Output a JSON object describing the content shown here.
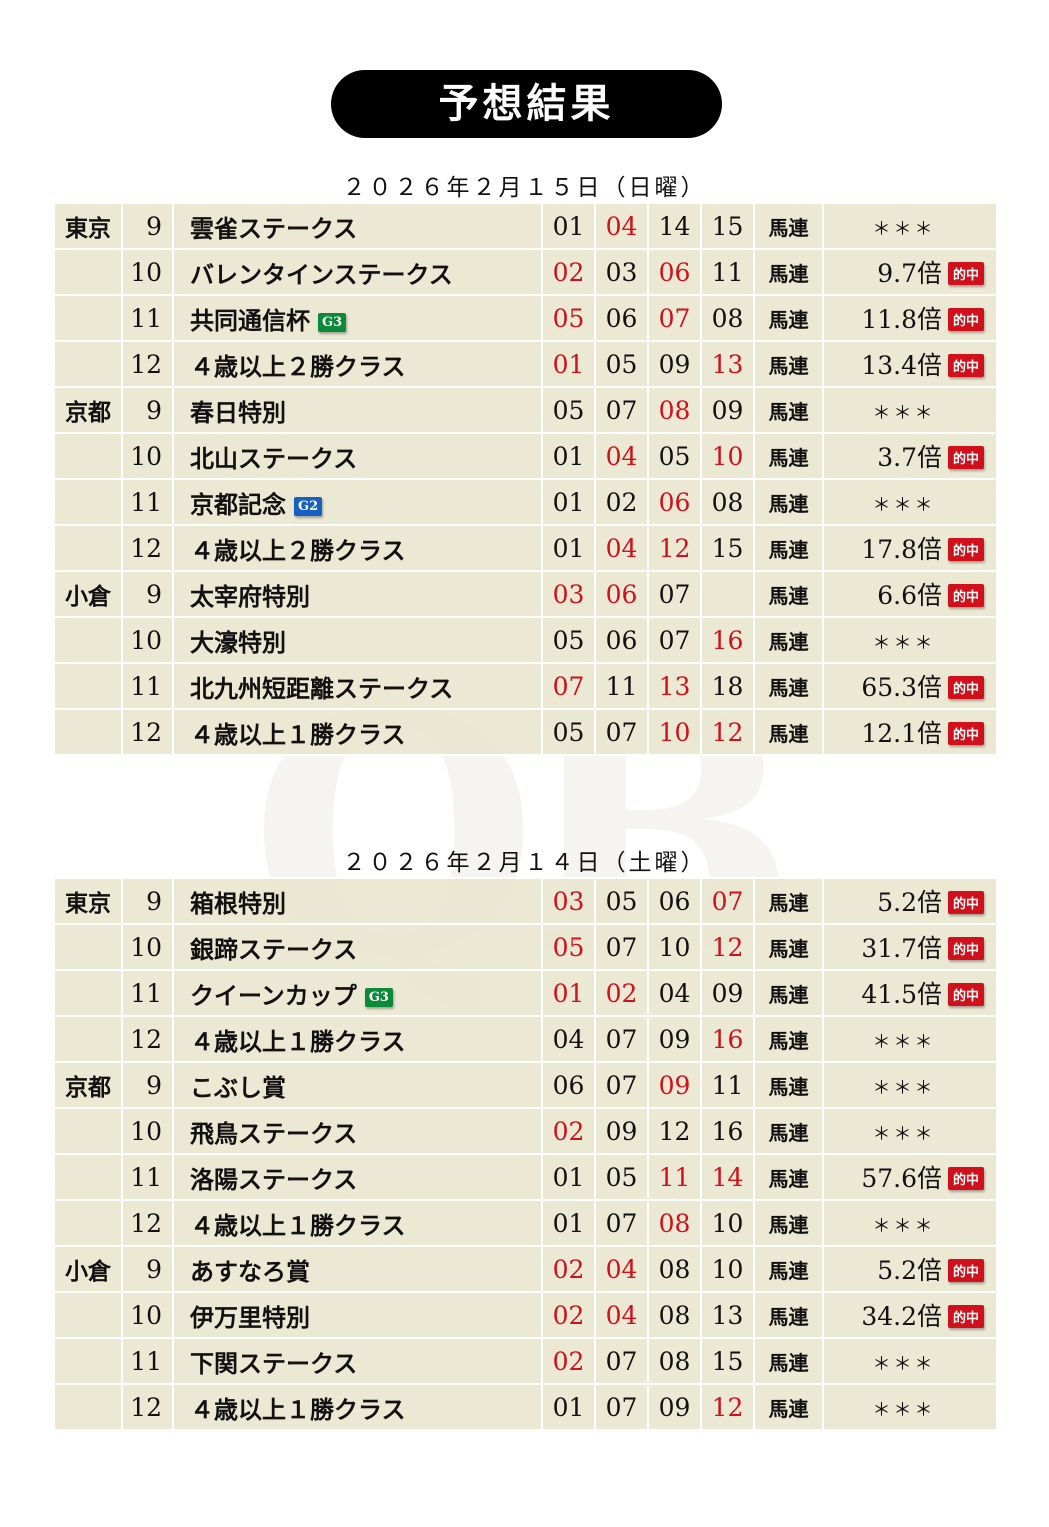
{
  "title": "予想結果",
  "watermark": "QB",
  "colors": {
    "hit": "#d0101b",
    "G3": "#0b8a3a",
    "G2": "#1560c0",
    "cell": "#ece9d5"
  },
  "hit_label": "的中",
  "days": [
    {
      "date": "２０２６年２月１５日（日曜）",
      "rows": [
        {
          "venue": "東京",
          "no": "9",
          "name": "雲雀ステークス",
          "nums": [
            "01",
            "04",
            "14",
            "15"
          ],
          "hits": [
            1
          ],
          "type": "馬連",
          "result": "＊＊＊"
        },
        {
          "venue": "",
          "no": "10",
          "name": "バレンタインステークス",
          "nums": [
            "02",
            "03",
            "06",
            "11"
          ],
          "hits": [
            0,
            2
          ],
          "type": "馬連",
          "result": "9.7倍"
        },
        {
          "venue": "",
          "no": "11",
          "name": "共同通信杯",
          "grade": "G3",
          "nums": [
            "05",
            "06",
            "07",
            "08"
          ],
          "hits": [
            0,
            2
          ],
          "type": "馬連",
          "result": "11.8倍"
        },
        {
          "venue": "",
          "no": "12",
          "name": "４歳以上２勝クラス",
          "nums": [
            "01",
            "05",
            "09",
            "13"
          ],
          "hits": [
            0,
            3
          ],
          "type": "馬連",
          "result": "13.4倍"
        },
        {
          "venue": "京都",
          "no": "9",
          "name": "春日特別",
          "nums": [
            "05",
            "07",
            "08",
            "09"
          ],
          "hits": [
            2
          ],
          "type": "馬連",
          "result": "＊＊＊"
        },
        {
          "venue": "",
          "no": "10",
          "name": "北山ステークス",
          "nums": [
            "01",
            "04",
            "05",
            "10"
          ],
          "hits": [
            1,
            3
          ],
          "type": "馬連",
          "result": "3.7倍"
        },
        {
          "venue": "",
          "no": "11",
          "name": "京都記念",
          "grade": "G2",
          "nums": [
            "01",
            "02",
            "06",
            "08"
          ],
          "hits": [
            2
          ],
          "type": "馬連",
          "result": "＊＊＊"
        },
        {
          "venue": "",
          "no": "12",
          "name": "４歳以上２勝クラス",
          "nums": [
            "01",
            "04",
            "12",
            "15"
          ],
          "hits": [
            1,
            2
          ],
          "type": "馬連",
          "result": "17.8倍"
        },
        {
          "venue": "小倉",
          "no": "9",
          "name": "太宰府特別",
          "nums": [
            "03",
            "06",
            "07",
            ""
          ],
          "hits": [
            0,
            1
          ],
          "type": "馬連",
          "result": "6.6倍"
        },
        {
          "venue": "",
          "no": "10",
          "name": "大濠特別",
          "nums": [
            "05",
            "06",
            "07",
            "16"
          ],
          "hits": [
            3
          ],
          "type": "馬連",
          "result": "＊＊＊"
        },
        {
          "venue": "",
          "no": "11",
          "name": "北九州短距離ステークス",
          "nums": [
            "07",
            "11",
            "13",
            "18"
          ],
          "hits": [
            0,
            2
          ],
          "type": "馬連",
          "result": "65.3倍"
        },
        {
          "venue": "",
          "no": "12",
          "name": "４歳以上１勝クラス",
          "nums": [
            "05",
            "07",
            "10",
            "12"
          ],
          "hits": [
            2,
            3
          ],
          "type": "馬連",
          "result": "12.1倍"
        }
      ]
    },
    {
      "date": "２０２６年２月１４日（土曜）",
      "rows": [
        {
          "venue": "東京",
          "no": "9",
          "name": "箱根特別",
          "nums": [
            "03",
            "05",
            "06",
            "07"
          ],
          "hits": [
            0,
            3
          ],
          "type": "馬連",
          "result": "5.2倍"
        },
        {
          "venue": "",
          "no": "10",
          "name": "銀蹄ステークス",
          "nums": [
            "05",
            "07",
            "10",
            "12"
          ],
          "hits": [
            0,
            3
          ],
          "type": "馬連",
          "result": "31.7倍"
        },
        {
          "venue": "",
          "no": "11",
          "name": "クイーンカップ",
          "grade": "G3",
          "nums": [
            "01",
            "02",
            "04",
            "09"
          ],
          "hits": [
            0,
            1
          ],
          "type": "馬連",
          "result": "41.5倍"
        },
        {
          "venue": "",
          "no": "12",
          "name": "４歳以上１勝クラス",
          "nums": [
            "04",
            "07",
            "09",
            "16"
          ],
          "hits": [
            3
          ],
          "type": "馬連",
          "result": "＊＊＊"
        },
        {
          "venue": "京都",
          "no": "9",
          "name": "こぶし賞",
          "nums": [
            "06",
            "07",
            "09",
            "11"
          ],
          "hits": [
            2
          ],
          "type": "馬連",
          "result": "＊＊＊"
        },
        {
          "venue": "",
          "no": "10",
          "name": "飛鳥ステークス",
          "nums": [
            "02",
            "09",
            "12",
            "16"
          ],
          "hits": [
            0
          ],
          "type": "馬連",
          "result": "＊＊＊"
        },
        {
          "venue": "",
          "no": "11",
          "name": "洛陽ステークス",
          "nums": [
            "01",
            "05",
            "11",
            "14"
          ],
          "hits": [
            2,
            3
          ],
          "type": "馬連",
          "result": "57.6倍"
        },
        {
          "venue": "",
          "no": "12",
          "name": "４歳以上１勝クラス",
          "nums": [
            "01",
            "07",
            "08",
            "10"
          ],
          "hits": [
            2
          ],
          "type": "馬連",
          "result": "＊＊＊"
        },
        {
          "venue": "小倉",
          "no": "9",
          "name": "あすなろ賞",
          "nums": [
            "02",
            "04",
            "08",
            "10"
          ],
          "hits": [
            0,
            1
          ],
          "type": "馬連",
          "result": "5.2倍"
        },
        {
          "venue": "",
          "no": "10",
          "name": "伊万里特別",
          "nums": [
            "02",
            "04",
            "08",
            "13"
          ],
          "hits": [
            0,
            1
          ],
          "type": "馬連",
          "result": "34.2倍"
        },
        {
          "venue": "",
          "no": "11",
          "name": "下関ステークス",
          "nums": [
            "02",
            "07",
            "08",
            "15"
          ],
          "hits": [
            0
          ],
          "type": "馬連",
          "result": "＊＊＊"
        },
        {
          "venue": "",
          "no": "12",
          "name": "４歳以上１勝クラス",
          "nums": [
            "01",
            "07",
            "09",
            "12"
          ],
          "hits": [
            3
          ],
          "type": "馬連",
          "result": "＊＊＊"
        }
      ]
    }
  ]
}
